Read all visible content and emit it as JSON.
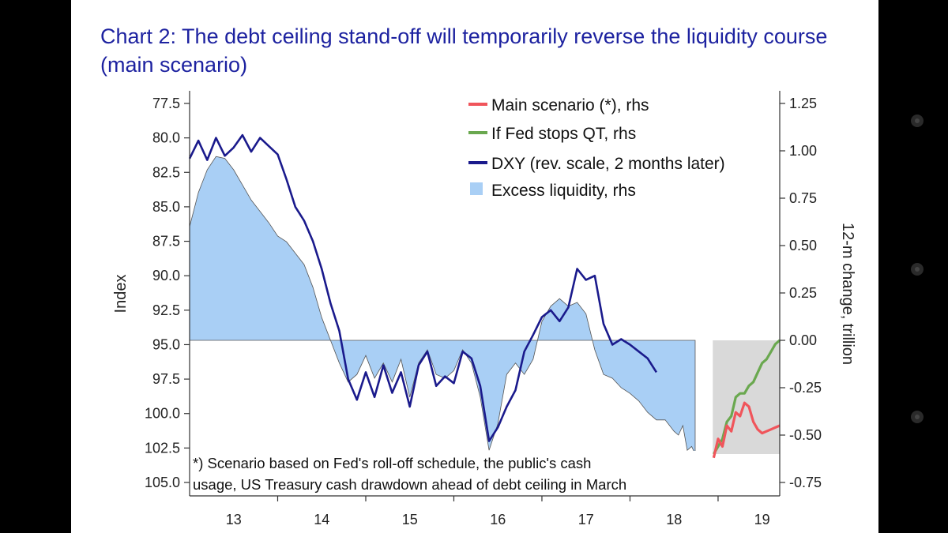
{
  "title": "Chart 2: The debt ceiling stand-off will temporarily reverse the liquidity course (main scenario)",
  "footnote": {
    "line1": "*) Scenario based on Fed's roll-off schedule, the public's cash",
    "line2": "usage, US Treasury cash drawdown ahead of debt ceiling in March"
  },
  "chart_data": {
    "type": "line",
    "x_ticks": [
      "13",
      "14",
      "15",
      "16",
      "17",
      "18",
      "19"
    ],
    "left_axis": {
      "label": "Index",
      "reversed": true,
      "range": [
        77.5,
        105.0
      ],
      "ticks": [
        "77.5",
        "80.0",
        "82.5",
        "85.0",
        "87.5",
        "90.0",
        "92.5",
        "95.0",
        "97.5",
        "100.0",
        "102.5",
        "105.0"
      ]
    },
    "right_axis": {
      "label": "12-m change, trillion",
      "range": [
        -0.75,
        1.25
      ],
      "ticks": [
        "1.25",
        "1.00",
        "0.75",
        "0.50",
        "0.25",
        "0.00",
        "-0.25",
        "-0.50",
        "-0.75"
      ]
    },
    "legend_position": "top-right",
    "projection_shading": {
      "from": 2018.94,
      "to": 2019.7,
      "color": "#d9d9d9"
    },
    "series": [
      {
        "name": "Main scenario (*), rhs",
        "axis": "right",
        "color": "#f0555b",
        "points": [
          [
            2018.95,
            -0.62
          ],
          [
            2019.0,
            -0.52
          ],
          [
            2019.05,
            -0.56
          ],
          [
            2019.1,
            -0.45
          ],
          [
            2019.15,
            -0.48
          ],
          [
            2019.2,
            -0.38
          ],
          [
            2019.25,
            -0.4
          ],
          [
            2019.3,
            -0.33
          ],
          [
            2019.35,
            -0.35
          ],
          [
            2019.4,
            -0.43
          ],
          [
            2019.45,
            -0.47
          ],
          [
            2019.5,
            -0.49
          ],
          [
            2019.55,
            -0.48
          ],
          [
            2019.6,
            -0.47
          ],
          [
            2019.65,
            -0.46
          ],
          [
            2019.7,
            -0.45
          ]
        ]
      },
      {
        "name": "If Fed stops QT, rhs",
        "axis": "right",
        "color": "#6aa84f",
        "points": [
          [
            2018.95,
            -0.6
          ],
          [
            2019.0,
            -0.56
          ],
          [
            2019.05,
            -0.52
          ],
          [
            2019.1,
            -0.43
          ],
          [
            2019.15,
            -0.4
          ],
          [
            2019.2,
            -0.3
          ],
          [
            2019.25,
            -0.28
          ],
          [
            2019.3,
            -0.28
          ],
          [
            2019.35,
            -0.24
          ],
          [
            2019.4,
            -0.22
          ],
          [
            2019.45,
            -0.17
          ],
          [
            2019.5,
            -0.12
          ],
          [
            2019.55,
            -0.1
          ],
          [
            2019.6,
            -0.06
          ],
          [
            2019.65,
            -0.02
          ],
          [
            2019.7,
            0.0
          ]
        ]
      },
      {
        "name": "DXY (rev. scale, 2 months later)",
        "axis": "left",
        "color": "#1a1a8c",
        "points": [
          [
            2013.0,
            81.5
          ],
          [
            2013.1,
            80.2
          ],
          [
            2013.2,
            81.6
          ],
          [
            2013.3,
            80.0
          ],
          [
            2013.4,
            81.3
          ],
          [
            2013.5,
            80.7
          ],
          [
            2013.6,
            79.8
          ],
          [
            2013.7,
            81.0
          ],
          [
            2013.8,
            80.0
          ],
          [
            2013.9,
            80.6
          ],
          [
            2014.0,
            81.2
          ],
          [
            2014.1,
            83.0
          ],
          [
            2014.2,
            85.0
          ],
          [
            2014.3,
            86.0
          ],
          [
            2014.4,
            87.5
          ],
          [
            2014.5,
            89.5
          ],
          [
            2014.6,
            92.0
          ],
          [
            2014.7,
            94.0
          ],
          [
            2014.8,
            97.5
          ],
          [
            2014.9,
            99.0
          ],
          [
            2015.0,
            97.0
          ],
          [
            2015.1,
            98.8
          ],
          [
            2015.2,
            96.5
          ],
          [
            2015.3,
            98.5
          ],
          [
            2015.4,
            97.0
          ],
          [
            2015.5,
            99.5
          ],
          [
            2015.6,
            96.5
          ],
          [
            2015.7,
            95.5
          ],
          [
            2015.8,
            98.0
          ],
          [
            2015.9,
            97.3
          ],
          [
            2016.0,
            97.8
          ],
          [
            2016.1,
            95.5
          ],
          [
            2016.2,
            96.0
          ],
          [
            2016.3,
            98.0
          ],
          [
            2016.4,
            102.0
          ],
          [
            2016.5,
            101.0
          ],
          [
            2016.6,
            99.5
          ],
          [
            2016.7,
            98.3
          ],
          [
            2016.8,
            95.5
          ],
          [
            2016.9,
            94.3
          ],
          [
            2017.0,
            93.0
          ],
          [
            2017.1,
            92.5
          ],
          [
            2017.2,
            93.3
          ],
          [
            2017.3,
            92.3
          ],
          [
            2017.4,
            89.5
          ],
          [
            2017.5,
            90.3
          ],
          [
            2017.6,
            90.0
          ],
          [
            2017.7,
            93.5
          ],
          [
            2017.8,
            95.0
          ],
          [
            2017.9,
            94.6
          ],
          [
            2018.0,
            95.0
          ],
          [
            2018.1,
            95.5
          ],
          [
            2018.2,
            96.0
          ],
          [
            2018.3,
            97.0
          ]
        ]
      },
      {
        "name": "Excess liquidity, rhs",
        "axis": "right",
        "color": "#a9cff5",
        "style": "area",
        "points": [
          [
            2013.0,
            0.6
          ],
          [
            2013.1,
            0.78
          ],
          [
            2013.2,
            0.9
          ],
          [
            2013.3,
            0.97
          ],
          [
            2013.4,
            0.96
          ],
          [
            2013.5,
            0.9
          ],
          [
            2013.6,
            0.82
          ],
          [
            2013.7,
            0.74
          ],
          [
            2013.8,
            0.68
          ],
          [
            2013.9,
            0.62
          ],
          [
            2014.0,
            0.55
          ],
          [
            2014.1,
            0.52
          ],
          [
            2014.2,
            0.46
          ],
          [
            2014.3,
            0.4
          ],
          [
            2014.4,
            0.28
          ],
          [
            2014.5,
            0.12
          ],
          [
            2014.6,
            0.0
          ],
          [
            2014.7,
            -0.12
          ],
          [
            2014.8,
            -0.22
          ],
          [
            2014.9,
            -0.18
          ],
          [
            2015.0,
            -0.08
          ],
          [
            2015.1,
            -0.2
          ],
          [
            2015.2,
            -0.12
          ],
          [
            2015.3,
            -0.22
          ],
          [
            2015.4,
            -0.1
          ],
          [
            2015.5,
            -0.3
          ],
          [
            2015.6,
            -0.12
          ],
          [
            2015.7,
            -0.05
          ],
          [
            2015.8,
            -0.18
          ],
          [
            2015.9,
            -0.2
          ],
          [
            2016.0,
            -0.16
          ],
          [
            2016.1,
            -0.05
          ],
          [
            2016.2,
            -0.12
          ],
          [
            2016.3,
            -0.3
          ],
          [
            2016.4,
            -0.58
          ],
          [
            2016.5,
            -0.44
          ],
          [
            2016.6,
            -0.18
          ],
          [
            2016.7,
            -0.12
          ],
          [
            2016.8,
            -0.18
          ],
          [
            2016.9,
            -0.1
          ],
          [
            2017.0,
            0.1
          ],
          [
            2017.1,
            0.18
          ],
          [
            2017.2,
            0.22
          ],
          [
            2017.3,
            0.18
          ],
          [
            2017.4,
            0.2
          ],
          [
            2017.5,
            0.14
          ],
          [
            2017.6,
            -0.05
          ],
          [
            2017.7,
            -0.18
          ],
          [
            2017.8,
            -0.2
          ],
          [
            2017.9,
            -0.25
          ],
          [
            2018.0,
            -0.28
          ],
          [
            2018.1,
            -0.32
          ],
          [
            2018.2,
            -0.38
          ],
          [
            2018.3,
            -0.42
          ],
          [
            2018.4,
            -0.42
          ],
          [
            2018.5,
            -0.48
          ],
          [
            2018.55,
            -0.5
          ],
          [
            2018.6,
            -0.45
          ],
          [
            2018.65,
            -0.58
          ],
          [
            2018.7,
            -0.56
          ],
          [
            2018.74,
            -0.6
          ]
        ]
      }
    ]
  }
}
